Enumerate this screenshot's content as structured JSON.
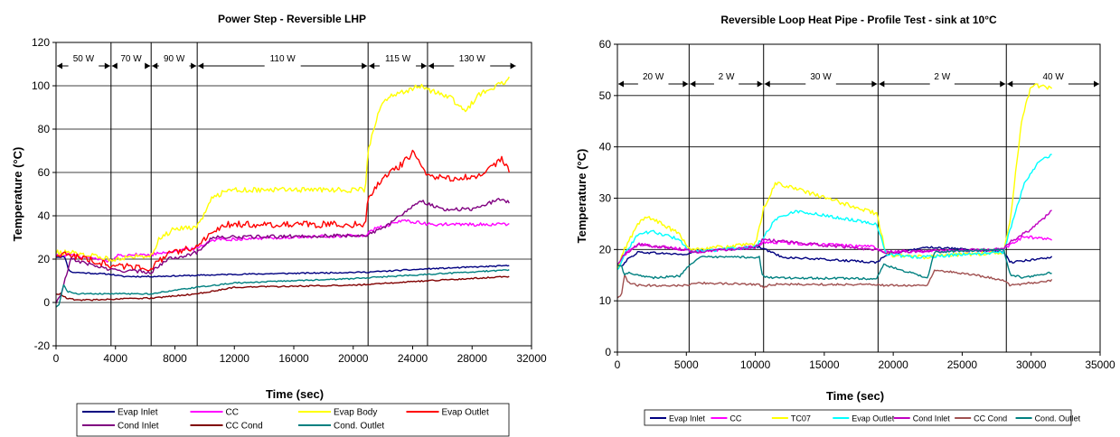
{
  "chart_data": [
    {
      "type": "line",
      "title": "Power Step - Reversible LHP",
      "xlabel": "Time (sec)",
      "ylabel": "Temperature (°C)",
      "xlim": [
        0,
        32000
      ],
      "ylim": [
        -20,
        120
      ],
      "xticks": [
        0,
        4000,
        8000,
        12000,
        16000,
        20000,
        24000,
        28000,
        32000
      ],
      "yticks": [
        -20,
        0,
        20,
        40,
        60,
        80,
        100,
        120
      ],
      "grid": true,
      "legend_position": "bottom",
      "legend_columns": 4,
      "phase_boundaries": [
        3700,
        6400,
        9500,
        21000,
        25000
      ],
      "power_steps": [
        {
          "label": "50 W",
          "from": 0,
          "to": 3700
        },
        {
          "label": "70 W",
          "from": 3700,
          "to": 6400
        },
        {
          "label": "90 W",
          "from": 6400,
          "to": 9500
        },
        {
          "label": "110 W",
          "from": 9500,
          "to": 21000
        },
        {
          "label": "115 W",
          "from": 21000,
          "to": 25000
        },
        {
          "label": "130 W",
          "from": 25000,
          "to": 31000
        }
      ],
      "series": [
        {
          "name": "Evap Inlet",
          "color": "#000080",
          "noise": 0.3,
          "x": [
            0,
            300,
            600,
            800,
            1000,
            3700,
            4500,
            6400,
            9500,
            12000,
            21000,
            25000,
            30500
          ],
          "y": [
            21,
            21,
            21,
            16,
            14,
            13,
            12,
            12,
            12.5,
            13,
            14,
            15.5,
            17
          ]
        },
        {
          "name": "CC",
          "color": "#ff00ff",
          "noise": 0.8,
          "x": [
            0,
            600,
            1000,
            3700,
            4200,
            6400,
            7000,
            9500,
            10500,
            20800,
            21500,
            22500,
            23500,
            25000,
            30500
          ],
          "y": [
            22,
            22,
            22,
            19,
            22,
            22,
            23,
            25,
            29,
            31,
            34,
            36,
            38,
            36,
            36
          ]
        },
        {
          "name": "Evap Body",
          "color": "#ffff00",
          "noise": 1.2,
          "x": [
            0,
            1000,
            3700,
            5000,
            6400,
            7000,
            8000,
            9500,
            10500,
            11500,
            20800,
            21000,
            21800,
            22500,
            24500,
            25000,
            26500,
            27500,
            28500,
            30500
          ],
          "y": [
            23,
            23,
            20,
            21,
            22,
            30,
            34,
            35,
            48,
            52,
            52,
            70,
            90,
            95,
            100,
            98,
            95,
            88,
            96,
            103
          ]
        },
        {
          "name": "Evap Outlet",
          "color": "#ff0000",
          "noise": 1.5,
          "x": [
            0,
            1000,
            3700,
            6400,
            7500,
            9500,
            10500,
            11500,
            20800,
            21000,
            22000,
            23000,
            24000,
            25000,
            27000,
            28500,
            30000,
            30500
          ],
          "y": [
            22,
            22,
            17,
            16,
            22,
            26,
            32,
            36,
            36,
            48,
            58,
            62,
            69,
            58,
            57,
            59,
            66,
            61
          ]
        },
        {
          "name": "Cond Inlet",
          "color": "#800080",
          "noise": 0.8,
          "x": [
            0,
            300,
            1000,
            3700,
            6400,
            7500,
            9500,
            10500,
            20800,
            22000,
            23500,
            24500,
            26000,
            28000,
            30000,
            30500
          ],
          "y": [
            0,
            3,
            20,
            15,
            14,
            20,
            23,
            30,
            31,
            34,
            42,
            47,
            43,
            43,
            48,
            46
          ]
        },
        {
          "name": "CC Cond",
          "color": "#800000",
          "noise": 0.3,
          "x": [
            0,
            300,
            700,
            1500,
            3700,
            6400,
            9500,
            12000,
            20000,
            25000,
            30500
          ],
          "y": [
            4,
            4,
            2,
            1,
            1.5,
            2,
            4,
            7,
            8,
            10,
            12
          ]
        },
        {
          "name": "Cond. Outlet",
          "color": "#008080",
          "noise": 0.3,
          "x": [
            0,
            200,
            500,
            800,
            1500,
            3700,
            6400,
            9500,
            12000,
            20000,
            25000,
            30500
          ],
          "y": [
            -2,
            -1,
            8,
            5,
            4,
            4,
            4,
            7,
            9,
            11,
            13,
            15
          ]
        }
      ]
    },
    {
      "type": "line",
      "title": "Reversible Loop Heat Pipe - Profile Test - sink at 10°C",
      "xlabel": "Time (sec)",
      "ylabel": "Temperature (°C)",
      "xlim": [
        0,
        35000
      ],
      "ylim": [
        0,
        60
      ],
      "xticks": [
        0,
        5000,
        10000,
        15000,
        20000,
        25000,
        30000,
        35000
      ],
      "yticks": [
        0,
        10,
        20,
        30,
        40,
        50,
        60
      ],
      "grid": true,
      "legend_position": "bottom",
      "legend_columns": 7,
      "phase_boundaries": [
        5200,
        10600,
        18900,
        28200
      ],
      "power_steps": [
        {
          "label": "20 W",
          "from": 0,
          "to": 5200
        },
        {
          "label": "2 W",
          "from": 5200,
          "to": 10600
        },
        {
          "label": "30 W",
          "from": 10600,
          "to": 18900
        },
        {
          "label": "2 W",
          "from": 18900,
          "to": 28200
        },
        {
          "label": "40 W",
          "from": 28200,
          "to": 35000
        }
      ],
      "series": [
        {
          "name": "Evap Inlet",
          "color": "#000080",
          "noise": 0.2,
          "x": [
            0,
            400,
            700,
            1500,
            5000,
            5500,
            10300,
            10700,
            12000,
            18800,
            19500,
            22500,
            28000,
            28500,
            31500
          ],
          "y": [
            17,
            17,
            18,
            19.5,
            19,
            19.5,
            20.5,
            20,
            18.5,
            17.5,
            19,
            20.5,
            19.5,
            17.5,
            18.5
          ]
        },
        {
          "name": "CC",
          "color": "#ff00ff",
          "noise": 0.3,
          "x": [
            0,
            500,
            1500,
            5000,
            5500,
            10000,
            10600,
            18500,
            19500,
            28000,
            28500,
            29500,
            31500
          ],
          "y": [
            17,
            19,
            21,
            20,
            19.5,
            20.5,
            21.5,
            20.5,
            19.5,
            20,
            21,
            22.5,
            22
          ]
        },
        {
          "name": "TC07",
          "color": "#ffff00",
          "noise": 0.4,
          "x": [
            0,
            500,
            1500,
            2200,
            4500,
            5200,
            10000,
            10600,
            11500,
            18800,
            19500,
            22000,
            28000,
            28500,
            29300,
            30000,
            31500
          ],
          "y": [
            16,
            20,
            25,
            26.5,
            23,
            20,
            21,
            28,
            33,
            27,
            19,
            18.5,
            19.5,
            26,
            45,
            52,
            51.5
          ]
        },
        {
          "name": "Evap Outlet",
          "color": "#00ffff",
          "noise": 0.3,
          "x": [
            0,
            500,
            1500,
            2500,
            4500,
            5200,
            10000,
            10600,
            11500,
            13000,
            18800,
            19500,
            22000,
            28000,
            28500,
            29500,
            30500,
            31500
          ],
          "y": [
            16,
            19,
            23,
            23.5,
            22,
            19.5,
            20.5,
            22.5,
            26,
            27.5,
            25,
            19,
            18.5,
            19.5,
            24,
            33,
            37,
            38.5
          ]
        },
        {
          "name": "Cond Inlet",
          "color": "#c000c0",
          "noise": 0.3,
          "x": [
            0,
            500,
            1500,
            5000,
            5500,
            10000,
            10600,
            12000,
            18800,
            19500,
            28000,
            28500,
            30000,
            31500
          ],
          "y": [
            17,
            19,
            21,
            20,
            19.5,
            20.5,
            22,
            21.5,
            20,
            19.5,
            20,
            21.5,
            24,
            27.5
          ]
        },
        {
          "name": "CC Cond",
          "color": "#a05050",
          "noise": 0.2,
          "x": [
            0,
            300,
            500,
            800,
            1500,
            5000,
            5500,
            10300,
            10600,
            11000,
            18800,
            19500,
            22500,
            23000,
            26000,
            28000,
            28500,
            31500
          ],
          "y": [
            10.5,
            11,
            15,
            13.5,
            13,
            13,
            13.5,
            13.2,
            12.5,
            13.2,
            13.2,
            13,
            13,
            16,
            15,
            14,
            13,
            14
          ]
        },
        {
          "name": "Cond. Outlet",
          "color": "#008080",
          "noise": 0.2,
          "x": [
            0,
            300,
            500,
            800,
            2500,
            4500,
            5200,
            6000,
            10300,
            10500,
            11000,
            18800,
            19300,
            22500,
            23000,
            28000,
            28500,
            29500,
            31500
          ],
          "y": [
            17,
            17,
            15,
            15.5,
            14.5,
            14.8,
            17,
            18.5,
            18.5,
            15,
            14.5,
            14.3,
            17,
            14.5,
            19.5,
            20,
            15,
            14.5,
            15.5
          ]
        }
      ]
    }
  ]
}
